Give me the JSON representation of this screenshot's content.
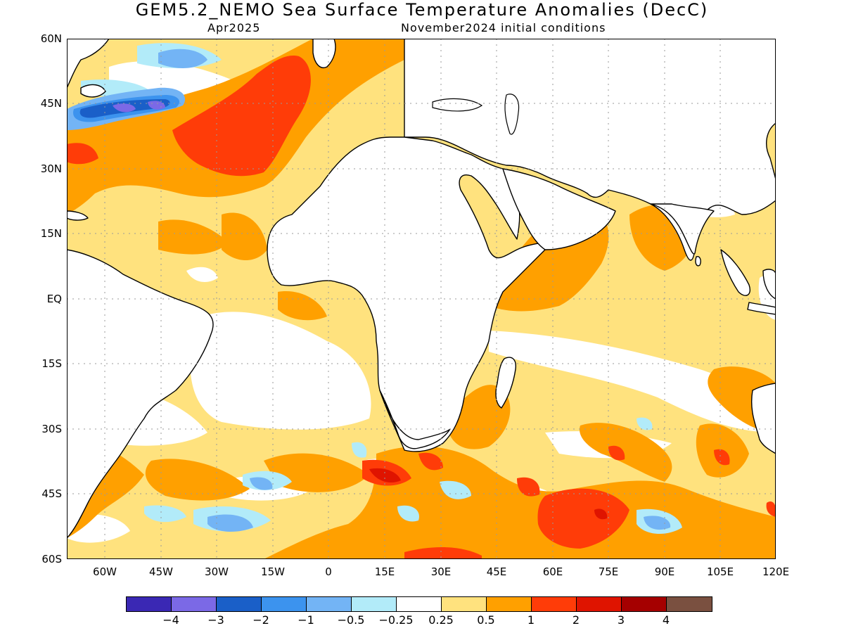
{
  "title": "GEM5.2_NEMO Sea Surface Temperature Anomalies (DecC)",
  "subtitle_left": "Apr2025",
  "subtitle_right": "November2024 initial conditions",
  "lat_labels": [
    "60N",
    "45N",
    "30N",
    "15N",
    "EQ",
    "15S",
    "30S",
    "45S",
    "60S"
  ],
  "lon_labels": [
    "60W",
    "45W",
    "30W",
    "15W",
    "0",
    "15E",
    "30E",
    "45E",
    "60E",
    "75E",
    "90E",
    "105E",
    "120E"
  ],
  "colorbar": {
    "colors": [
      "#3a28b4",
      "#7b69e6",
      "#1a5fc8",
      "#3c93ee",
      "#73b4f5",
      "#b2ebf9",
      "#ffffff",
      "#ffe27e",
      "#ffa000",
      "#ff3c08",
      "#df1400",
      "#a50000",
      "#7a5040"
    ],
    "labels": [
      "−4",
      "−3",
      "−2",
      "−1",
      "−0.5",
      "−0.25",
      "0.25",
      "0.5",
      "1",
      "2",
      "3",
      "4"
    ]
  },
  "legend_colors": {
    "land": "#ffffff",
    "coastline": "#000000"
  }
}
